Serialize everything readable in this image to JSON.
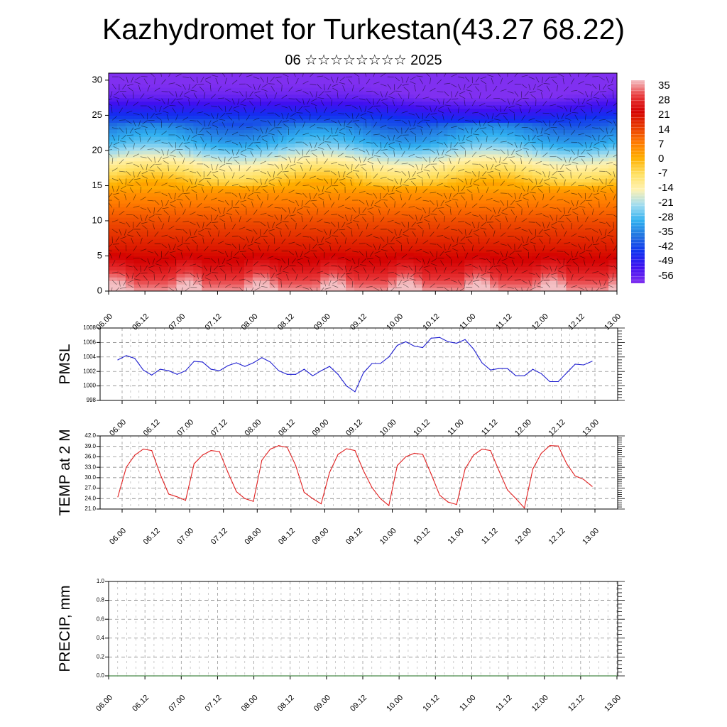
{
  "title": "Kazhydromet for Turkestan(43.27 68.22)",
  "subtitle": "06 ☆☆☆☆☆☆☆☆ 2025",
  "colorbar": {
    "labels": [
      "35",
      "28",
      "21",
      "14",
      "7",
      "0",
      "-7",
      "-14",
      "-21",
      "-28",
      "-35",
      "-42",
      "-49",
      "-56"
    ],
    "stops": [
      "#f4c0c4",
      "#e8383a",
      "#d40000",
      "#e83a00",
      "#ff7a00",
      "#ffb000",
      "#ffe060",
      "#fff2b0",
      "#a0dcf0",
      "#30b0f0",
      "#2070e0",
      "#1030f0",
      "#4010f0",
      "#8030f0"
    ]
  },
  "chart_data": [
    {
      "type": "heatmap",
      "title": "",
      "xlabel": "",
      "ylabel": "",
      "x_tick_labels": [
        "06.00",
        "06.12",
        "07.00",
        "07.12",
        "08.00",
        "08.12",
        "09.00",
        "09.12",
        "10.00",
        "10.12",
        "11.00",
        "11.12",
        "12.00",
        "12.12",
        "13.00"
      ],
      "y_ticks": [
        0,
        5,
        10,
        15,
        20,
        25,
        30
      ],
      "ylim": [
        0,
        31
      ],
      "value_range": [
        -56,
        35
      ],
      "height_profile": {
        "heights": [
          0,
          1,
          3,
          5,
          8,
          10,
          12,
          14,
          15,
          16,
          17,
          18,
          19,
          20,
          21,
          22,
          23,
          24,
          25,
          26,
          27,
          28,
          31
        ],
        "values": [
          33,
          30,
          24,
          20,
          15,
          12,
          8,
          4,
          0,
          -4,
          -8,
          -12,
          -17,
          -22,
          -27,
          -30,
          -33,
          -37,
          -42,
          -46,
          -50,
          -54,
          -58
        ]
      }
    },
    {
      "type": "line",
      "ylabel": "PMSL",
      "ylim": [
        998,
        1008
      ],
      "y_ticks": [
        998,
        1000,
        1002,
        1004,
        1006,
        1008
      ],
      "x_tick_labels": [
        "06.00",
        "06.12",
        "07.00",
        "07.12",
        "08.00",
        "08.12",
        "09.00",
        "09.12",
        "10.00",
        "10.12",
        "11.00",
        "11.12",
        "12.00",
        "12.12",
        "13.00"
      ],
      "grid": true,
      "color": "#1f1fd0",
      "series": [
        {
          "values": [
            1003.6,
            1004.2,
            1003.8,
            1002.2,
            1001.5,
            1002.3,
            1002.1,
            1001.6,
            1002.1,
            1003.4,
            1003.3,
            1002.3,
            1002.1,
            1002.8,
            1003.2,
            1002.7,
            1003.2,
            1003.9,
            1003.3,
            1002.1,
            1001.6,
            1001.6,
            1002.3,
            1001.4,
            1002.1,
            1002.7,
            1001.6,
            1000.0,
            999.2,
            1001.8,
            1003.1,
            1003.1,
            1004.0,
            1005.6,
            1006.1,
            1005.5,
            1005.3,
            1006.6,
            1006.7,
            1006.1,
            1005.9,
            1006.4,
            1005.1,
            1003.2,
            1002.2,
            1002.4,
            1002.4,
            1001.4,
            1001.4,
            1002.3,
            1001.7,
            1000.6,
            1000.6,
            1001.8,
            1003.0,
            1002.9,
            1003.4
          ]
        }
      ]
    },
    {
      "type": "line",
      "ylabel": "TEMP at 2 M",
      "ylim": [
        21.0,
        42.0
      ],
      "y_ticks": [
        "21.0",
        "24.0",
        "27.0",
        "30.0",
        "33.0",
        "36.0",
        "39.0",
        "42.0"
      ],
      "x_tick_labels": [
        "06.00",
        "06.12",
        "07.00",
        "07.12",
        "08.00",
        "08.12",
        "09.00",
        "09.12",
        "10.00",
        "10.12",
        "11.00",
        "11.12",
        "12.00",
        "12.12",
        "13.00"
      ],
      "grid": true,
      "color": "#e02020",
      "series": [
        {
          "values": [
            24.5,
            33.0,
            36.5,
            38.2,
            37.8,
            31.0,
            25.3,
            24.5,
            23.5,
            34.0,
            36.5,
            37.8,
            37.5,
            31.5,
            26.0,
            24.0,
            23.2,
            35.0,
            38.2,
            39.2,
            38.7,
            33.5,
            25.8,
            24.0,
            22.5,
            31.5,
            36.7,
            38.3,
            37.8,
            32.0,
            27.2,
            24.0,
            22.0,
            33.5,
            36.0,
            37.0,
            36.7,
            31.0,
            25.0,
            23.0,
            22.3,
            32.5,
            36.5,
            38.2,
            37.8,
            32.0,
            26.5,
            24.0,
            21.3,
            32.5,
            37.0,
            39.2,
            39.1,
            34.0,
            30.5,
            29.5,
            27.5
          ]
        }
      ]
    },
    {
      "type": "line",
      "ylabel": "PRECIP, mm",
      "ylim": [
        0.0,
        1.0
      ],
      "y_ticks": [
        "0.0",
        "0.2",
        "0.4",
        "0.6",
        "0.8",
        "1.0"
      ],
      "x_tick_labels": [
        "06.00",
        "06.12",
        "07.00",
        "07.12",
        "08.00",
        "08.12",
        "09.00",
        "09.12",
        "10.00",
        "10.12",
        "11.00",
        "11.12",
        "12.00",
        "12.12",
        "13.00"
      ],
      "grid": true,
      "color": "#1a6b1a",
      "series": [
        {
          "values": [
            0,
            0,
            0,
            0,
            0,
            0,
            0,
            0,
            0,
            0,
            0,
            0,
            0,
            0,
            0,
            0,
            0,
            0,
            0,
            0,
            0,
            0,
            0,
            0,
            0,
            0,
            0,
            0,
            0,
            0,
            0,
            0,
            0,
            0,
            0,
            0,
            0,
            0,
            0,
            0,
            0,
            0,
            0,
            0,
            0,
            0,
            0,
            0,
            0,
            0,
            0,
            0,
            0,
            0,
            0,
            0,
            0
          ]
        }
      ]
    }
  ]
}
